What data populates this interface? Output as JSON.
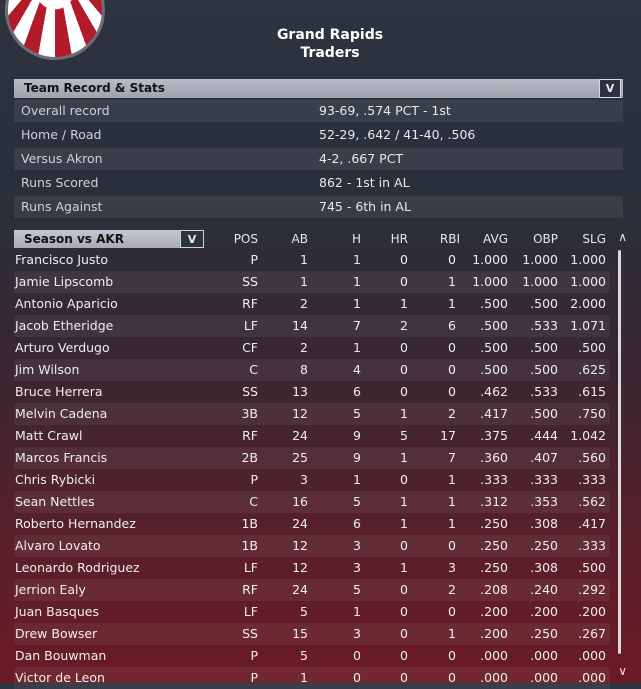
{
  "team": {
    "line1": "Grand Rapids",
    "line2": "Traders",
    "logo_icon": "bunting-logo-icon"
  },
  "record_section": {
    "header": "Team Record & Stats",
    "dropdown_glyph": "V",
    "rows": [
      {
        "label": "Overall record",
        "value": "93-69, .574 PCT - 1st"
      },
      {
        "label": "Home / Road",
        "value": "52-29, .642 / 41-40, .506"
      },
      {
        "label": "Versus Akron",
        "value": "4-2, .667 PCT"
      },
      {
        "label": "Runs Scored",
        "value": "862 - 1st in AL"
      },
      {
        "label": "Runs Against",
        "value": "745 - 6th in AL"
      }
    ]
  },
  "batting": {
    "selector_label": "Season vs AKR",
    "selector_glyph": "V",
    "columns": {
      "pos": "POS",
      "ab": "AB",
      "h": "H",
      "hr": "HR",
      "rbi": "RBI",
      "avg": "AVG",
      "obp": "OBP",
      "slg": "SLG"
    },
    "scroll_up_glyph": "∧",
    "scroll_down_glyph": "∨",
    "players": [
      {
        "name": "Francisco Justo",
        "pos": "P",
        "ab": "1",
        "h": "1",
        "hr": "0",
        "rbi": "0",
        "avg": "1.000",
        "obp": "1.000",
        "slg": "1.000"
      },
      {
        "name": "Jamie Lipscomb",
        "pos": "SS",
        "ab": "1",
        "h": "1",
        "hr": "0",
        "rbi": "1",
        "avg": "1.000",
        "obp": "1.000",
        "slg": "1.000"
      },
      {
        "name": "Antonio Aparicio",
        "pos": "RF",
        "ab": "2",
        "h": "1",
        "hr": "1",
        "rbi": "1",
        "avg": ".500",
        "obp": ".500",
        "slg": "2.000"
      },
      {
        "name": "Jacob Etheridge",
        "pos": "LF",
        "ab": "14",
        "h": "7",
        "hr": "2",
        "rbi": "6",
        "avg": ".500",
        "obp": ".533",
        "slg": "1.071"
      },
      {
        "name": "Arturo Verdugo",
        "pos": "CF",
        "ab": "2",
        "h": "1",
        "hr": "0",
        "rbi": "0",
        "avg": ".500",
        "obp": ".500",
        "slg": ".500"
      },
      {
        "name": "Jim Wilson",
        "pos": "C",
        "ab": "8",
        "h": "4",
        "hr": "0",
        "rbi": "0",
        "avg": ".500",
        "obp": ".500",
        "slg": ".625"
      },
      {
        "name": "Bruce Herrera",
        "pos": "SS",
        "ab": "13",
        "h": "6",
        "hr": "0",
        "rbi": "0",
        "avg": ".462",
        "obp": ".533",
        "slg": ".615"
      },
      {
        "name": "Melvin Cadena",
        "pos": "3B",
        "ab": "12",
        "h": "5",
        "hr": "1",
        "rbi": "2",
        "avg": ".417",
        "obp": ".500",
        "slg": ".750"
      },
      {
        "name": "Matt Crawl",
        "pos": "RF",
        "ab": "24",
        "h": "9",
        "hr": "5",
        "rbi": "17",
        "avg": ".375",
        "obp": ".444",
        "slg": "1.042"
      },
      {
        "name": "Marcos Francis",
        "pos": "2B",
        "ab": "25",
        "h": "9",
        "hr": "1",
        "rbi": "7",
        "avg": ".360",
        "obp": ".407",
        "slg": ".560"
      },
      {
        "name": "Chris Rybicki",
        "pos": "P",
        "ab": "3",
        "h": "1",
        "hr": "0",
        "rbi": "1",
        "avg": ".333",
        "obp": ".333",
        "slg": ".333"
      },
      {
        "name": "Sean Nettles",
        "pos": "C",
        "ab": "16",
        "h": "5",
        "hr": "1",
        "rbi": "1",
        "avg": ".312",
        "obp": ".353",
        "slg": ".562"
      },
      {
        "name": "Roberto Hernandez",
        "pos": "1B",
        "ab": "24",
        "h": "6",
        "hr": "1",
        "rbi": "1",
        "avg": ".250",
        "obp": ".308",
        "slg": ".417"
      },
      {
        "name": "Alvaro Lovato",
        "pos": "1B",
        "ab": "12",
        "h": "3",
        "hr": "0",
        "rbi": "0",
        "avg": ".250",
        "obp": ".250",
        "slg": ".333"
      },
      {
        "name": "Leonardo Rodriguez",
        "pos": "LF",
        "ab": "12",
        "h": "3",
        "hr": "1",
        "rbi": "3",
        "avg": ".250",
        "obp": ".308",
        "slg": ".500"
      },
      {
        "name": "Jerrion Ealy",
        "pos": "RF",
        "ab": "24",
        "h": "5",
        "hr": "0",
        "rbi": "2",
        "avg": ".208",
        "obp": ".240",
        "slg": ".292"
      },
      {
        "name": "Juan Basques",
        "pos": "LF",
        "ab": "5",
        "h": "1",
        "hr": "0",
        "rbi": "0",
        "avg": ".200",
        "obp": ".200",
        "slg": ".200"
      },
      {
        "name": "Drew Bowser",
        "pos": "SS",
        "ab": "15",
        "h": "3",
        "hr": "0",
        "rbi": "1",
        "avg": ".200",
        "obp": ".250",
        "slg": ".267"
      },
      {
        "name": "Dan Bouwman",
        "pos": "P",
        "ab": "5",
        "h": "0",
        "hr": "0",
        "rbi": "0",
        "avg": ".000",
        "obp": ".000",
        "slg": ".000"
      },
      {
        "name": "Victor de Leon",
        "pos": "P",
        "ab": "1",
        "h": "0",
        "hr": "0",
        "rbi": "0",
        "avg": ".000",
        "obp": ".000",
        "slg": ".000"
      }
    ]
  }
}
